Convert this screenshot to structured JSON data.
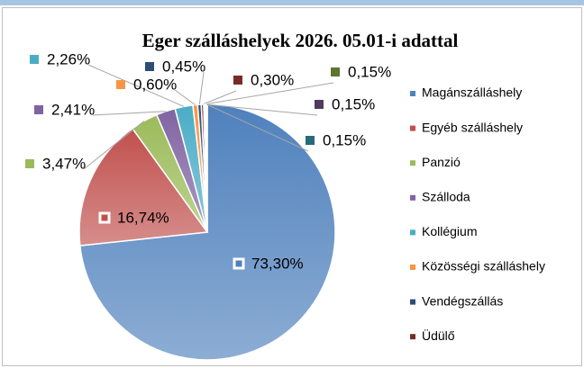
{
  "chart_data": {
    "type": "pie",
    "title": "Eger szálláshelyek 2026. 05.01-i adattal",
    "categories": [
      "Magánszálláshely",
      "Egyéb szálláshely",
      "Panzió",
      "Szálloda",
      "Kollégium",
      "Közösségi szálláshely",
      "Vendégszállás",
      "Üdülő",
      null,
      null,
      null
    ],
    "values": [
      73.3,
      16.74,
      3.47,
      2.41,
      2.26,
      0.6,
      0.45,
      0.3,
      0.15,
      0.15,
      0.15
    ],
    "value_labels": [
      "73,30%",
      "16,74%",
      "3,47%",
      "2,41%",
      "2,26%",
      "0,60%",
      "0,45%",
      "0,30%",
      "0,15%",
      "0,15%",
      "0,15%"
    ],
    "colors": [
      "#4f81bd",
      "#c0504d",
      "#9bbb59",
      "#8064a2",
      "#4bacc6",
      "#f79646",
      "#2c4d75",
      "#772c2a",
      "#5f7530",
      "#4d3b62",
      "#276a7c"
    ],
    "legend": "right"
  }
}
